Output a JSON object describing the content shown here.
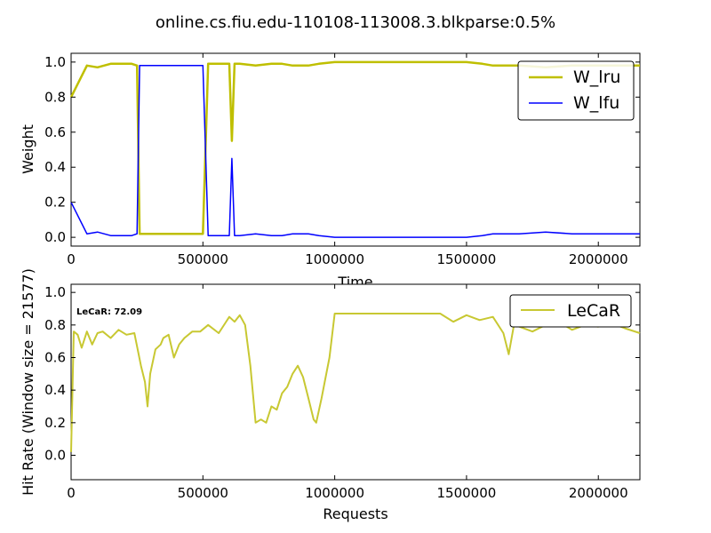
{
  "figure": {
    "title": "online.cs.fiu.edu-110108-113008.3.blkparse:0.5%"
  },
  "chart_data": [
    {
      "type": "line",
      "title": "",
      "xlabel": "Time",
      "ylabel": "Weight",
      "xlim": [
        0,
        2157700
      ],
      "ylim": [
        -0.05,
        1.05
      ],
      "xticks": [
        0,
        500000,
        1000000,
        1500000,
        2000000
      ],
      "xtick_labels": [
        "0",
        "500000",
        "1000000",
        "1500000",
        "2000000"
      ],
      "yticks": [
        0.0,
        0.2,
        0.4,
        0.6,
        0.8,
        1.0
      ],
      "ytick_labels": [
        "0.0",
        "0.2",
        "0.4",
        "0.6",
        "0.8",
        "1.0"
      ],
      "grid": false,
      "legend_position": "top-right",
      "series": [
        {
          "name": "W_lru",
          "color": "#bfbf00",
          "x": [
            0,
            60000,
            100000,
            150000,
            230000,
            250000,
            260000,
            400000,
            500000,
            520000,
            560000,
            600000,
            610000,
            620000,
            640000,
            700000,
            760000,
            800000,
            840000,
            900000,
            940000,
            1000000,
            1100000,
            1300000,
            1500000,
            1560000,
            1600000,
            1700000,
            1800000,
            1900000,
            2000000,
            2100000,
            2157700
          ],
          "y": [
            0.8,
            0.98,
            0.97,
            0.99,
            0.99,
            0.98,
            0.02,
            0.02,
            0.02,
            0.99,
            0.99,
            0.99,
            0.55,
            0.99,
            0.99,
            0.98,
            0.99,
            0.99,
            0.98,
            0.98,
            0.99,
            1.0,
            1.0,
            1.0,
            1.0,
            0.99,
            0.98,
            0.98,
            0.97,
            0.98,
            0.98,
            0.98,
            0.98
          ]
        },
        {
          "name": "W_lfu",
          "color": "#0000ff",
          "x": [
            0,
            60000,
            100000,
            150000,
            230000,
            250000,
            260000,
            400000,
            500000,
            520000,
            560000,
            600000,
            610000,
            620000,
            640000,
            700000,
            760000,
            800000,
            840000,
            900000,
            940000,
            1000000,
            1100000,
            1300000,
            1500000,
            1560000,
            1600000,
            1700000,
            1800000,
            1900000,
            2000000,
            2100000,
            2157700
          ],
          "y": [
            0.2,
            0.02,
            0.03,
            0.01,
            0.01,
            0.02,
            0.98,
            0.98,
            0.98,
            0.01,
            0.01,
            0.01,
            0.45,
            0.01,
            0.01,
            0.02,
            0.01,
            0.01,
            0.02,
            0.02,
            0.01,
            0.0,
            0.0,
            0.0,
            0.0,
            0.01,
            0.02,
            0.02,
            0.03,
            0.02,
            0.02,
            0.02,
            0.02
          ]
        }
      ]
    },
    {
      "type": "line",
      "title": "",
      "xlabel": "Requests",
      "ylabel": "Hit Rate (Window size = 21577)",
      "xlim": [
        0,
        2157700
      ],
      "ylim": [
        -0.15,
        1.05
      ],
      "xticks": [
        0,
        500000,
        1000000,
        1500000,
        2000000
      ],
      "xtick_labels": [
        "0",
        "500000",
        "1000000",
        "1500000",
        "2000000"
      ],
      "yticks": [
        0.0,
        0.2,
        0.4,
        0.6,
        0.8,
        1.0
      ],
      "ytick_labels": [
        "0.0",
        "0.2",
        "0.4",
        "0.6",
        "0.8",
        "1.0"
      ],
      "grid": false,
      "legend_position": "top-right",
      "annotation": "LeCaR:  72.09",
      "series": [
        {
          "name": "LeCaR",
          "color": "#c8c832",
          "x": [
            0,
            10000,
            25000,
            40000,
            60000,
            80000,
            100000,
            120000,
            150000,
            180000,
            210000,
            240000,
            265000,
            280000,
            290000,
            300000,
            320000,
            340000,
            350000,
            370000,
            390000,
            410000,
            430000,
            460000,
            490000,
            520000,
            560000,
            600000,
            620000,
            640000,
            660000,
            680000,
            700000,
            720000,
            740000,
            760000,
            780000,
            800000,
            820000,
            840000,
            860000,
            880000,
            900000,
            920000,
            930000,
            950000,
            980000,
            1000000,
            1050000,
            1100000,
            1200000,
            1300000,
            1350000,
            1400000,
            1450000,
            1500000,
            1550000,
            1600000,
            1640000,
            1660000,
            1680000,
            1700000,
            1750000,
            1800000,
            1850000,
            1900000,
            1950000,
            2000000,
            2050000,
            2100000,
            2157700
          ],
          "y": [
            0.02,
            0.76,
            0.74,
            0.66,
            0.76,
            0.68,
            0.75,
            0.76,
            0.72,
            0.77,
            0.74,
            0.75,
            0.55,
            0.45,
            0.3,
            0.5,
            0.65,
            0.68,
            0.72,
            0.74,
            0.6,
            0.68,
            0.72,
            0.76,
            0.76,
            0.8,
            0.75,
            0.85,
            0.82,
            0.86,
            0.8,
            0.55,
            0.2,
            0.22,
            0.2,
            0.3,
            0.28,
            0.38,
            0.42,
            0.5,
            0.55,
            0.48,
            0.35,
            0.22,
            0.2,
            0.35,
            0.6,
            0.87,
            0.87,
            0.87,
            0.87,
            0.87,
            0.87,
            0.87,
            0.82,
            0.86,
            0.83,
            0.85,
            0.75,
            0.62,
            0.8,
            0.79,
            0.76,
            0.8,
            0.82,
            0.77,
            0.8,
            0.79,
            0.81,
            0.78,
            0.75
          ]
        }
      ]
    }
  ]
}
